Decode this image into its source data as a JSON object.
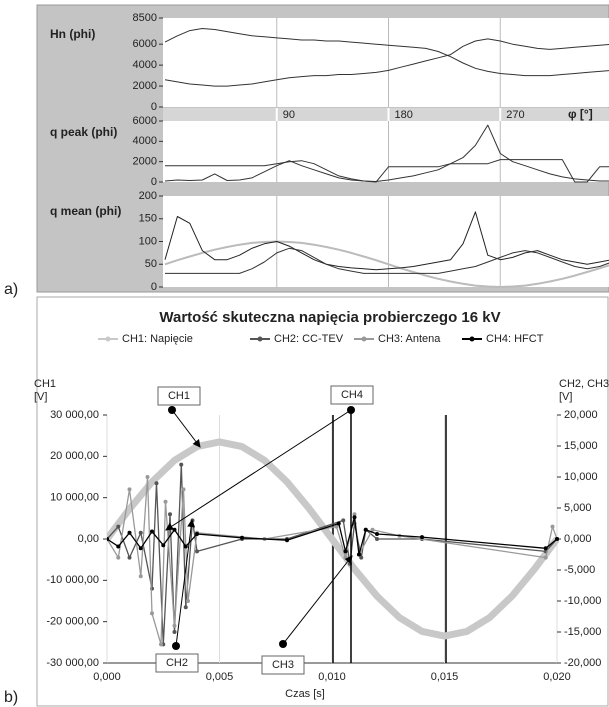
{
  "chart_data": [
    {
      "type": "line",
      "panel": "a)",
      "xlim": [
        0,
        360
      ],
      "xticks": [
        90,
        180,
        270
      ],
      "xlabel": "φ [°]",
      "x": [
        0,
        10,
        20,
        30,
        40,
        50,
        60,
        70,
        80,
        90,
        100,
        110,
        120,
        130,
        140,
        150,
        160,
        170,
        180,
        190,
        200,
        210,
        220,
        230,
        240,
        250,
        260,
        270,
        280,
        290,
        300,
        310,
        320,
        330,
        340,
        350,
        360
      ],
      "subplots": [
        {
          "ylabel": "Hn (phi)",
          "ylim": [
            0,
            8500
          ],
          "yticks": [
            0,
            2000,
            4000,
            6000,
            8500
          ],
          "series": [
            {
              "color": "#333333",
              "values": [
                6200,
                6800,
                7300,
                7500,
                7400,
                7200,
                7000,
                6800,
                6700,
                6600,
                6500,
                6400,
                6400,
                6300,
                6300,
                6200,
                6100,
                6000,
                5900,
                5800,
                5700,
                5600,
                5300,
                4800,
                4200,
                3700,
                3400,
                3200,
                3100,
                3000,
                3000,
                3000,
                3100,
                3200,
                3300,
                3400,
                3500
              ]
            },
            {
              "color": "#333333",
              "values": [
                2600,
                2400,
                2200,
                2100,
                2000,
                2000,
                2100,
                2200,
                2400,
                2600,
                2800,
                2900,
                3000,
                3000,
                3100,
                3100,
                3200,
                3300,
                3500,
                3800,
                4100,
                4400,
                4700,
                5000,
                5800,
                6300,
                6500,
                6300,
                6000,
                5800,
                5600,
                5500,
                5600,
                5700,
                5800,
                5900,
                6000
              ]
            }
          ]
        },
        {
          "ylabel": "q peak (phi)",
          "ylim": [
            0,
            6000
          ],
          "yticks": [
            0,
            2000,
            4000,
            6000
          ],
          "series": [
            {
              "color": "#333333",
              "values": [
                1600,
                1600,
                1600,
                1600,
                1600,
                1600,
                1600,
                1600,
                1600,
                1800,
                2000,
                2100,
                1800,
                1200,
                600,
                300,
                100,
                0,
                1500,
                1500,
                1500,
                1500,
                1500,
                1800,
                1800,
                1800,
                1800,
                2200,
                2200,
                2200,
                2200,
                2200,
                2200,
                0,
                0,
                1500,
                1500
              ]
            },
            {
              "color": "#333333",
              "values": [
                100,
                200,
                150,
                200,
                800,
                150,
                200,
                400,
                1000,
                1600,
                2100,
                1600,
                1200,
                800,
                400,
                200,
                100,
                50,
                200,
                400,
                600,
                900,
                1200,
                1800,
                2400,
                3600,
                5600,
                2800,
                2000,
                1600,
                1200,
                800,
                500,
                300,
                200,
                100,
                100
              ]
            }
          ]
        },
        {
          "ylabel": "q mean (phi)",
          "ylim": [
            0,
            200
          ],
          "yticks": [
            0,
            50,
            100,
            150,
            200
          ],
          "series": [
            {
              "color": "#bbbbbb",
              "values": [
                50,
                59,
                67,
                75,
                82,
                88,
                93,
                97,
                99,
                100,
                99,
                97,
                93,
                88,
                82,
                75,
                67,
                59,
                50,
                41,
                33,
                25,
                18,
                12,
                7,
                3,
                1,
                0,
                1,
                3,
                7,
                12,
                18,
                25,
                33,
                41,
                50
              ]
            },
            {
              "color": "#222222",
              "values": [
                60,
                155,
                140,
                80,
                60,
                60,
                70,
                85,
                95,
                100,
                90,
                75,
                60,
                50,
                45,
                42,
                40,
                38,
                40,
                42,
                45,
                50,
                55,
                60,
                95,
                165,
                70,
                60,
                65,
                75,
                80,
                70,
                60,
                55,
                50,
                55,
                60
              ]
            },
            {
              "color": "#333333",
              "values": [
                30,
                30,
                30,
                30,
                30,
                30,
                30,
                40,
                55,
                75,
                85,
                80,
                65,
                50,
                40,
                35,
                30,
                30,
                30,
                30,
                30,
                30,
                30,
                35,
                40,
                45,
                55,
                65,
                75,
                80,
                75,
                65,
                55,
                45,
                40,
                45,
                55
              ]
            }
          ]
        }
      ]
    },
    {
      "type": "line",
      "panel": "b)",
      "title": "Wartość skuteczna napięcia probierczego 16 kV",
      "ylabel": [
        "CH1",
        "[V]"
      ],
      "y2label": [
        "CH2, CH3, CH4",
        "[V]"
      ],
      "xlabel": "Czas [s]",
      "xlim": [
        0,
        0.02
      ],
      "xticks": [
        {
          "value": 0,
          "label": "0,000"
        },
        {
          "value": 0.005,
          "label": "0,005"
        },
        {
          "value": 0.01,
          "label": "0,010"
        },
        {
          "value": 0.015,
          "label": "0,015"
        },
        {
          "value": 0.02,
          "label": "0,020"
        }
      ],
      "ylim": [
        -30000,
        30000
      ],
      "yticks": [
        {
          "value": -30000,
          "label": "-30 000,00"
        },
        {
          "value": -20000,
          "label": "-20 000,00"
        },
        {
          "value": -10000,
          "label": "-10 000,00"
        },
        {
          "value": 0,
          "label": "0,00"
        },
        {
          "value": 10000,
          "label": "10 000,00"
        },
        {
          "value": 20000,
          "label": "20 000,00"
        },
        {
          "value": 30000,
          "label": "30 000,00"
        }
      ],
      "y2lim": [
        -20000,
        20000
      ],
      "y2ticks": [
        {
          "value": -20000,
          "label": "-20,000"
        },
        {
          "value": -15000,
          "label": "-15,000"
        },
        {
          "value": -10000,
          "label": "-10,000"
        },
        {
          "value": -5000,
          "label": "-5,000"
        },
        {
          "value": 0,
          "label": "0,000"
        },
        {
          "value": 5000,
          "label": "5,000"
        },
        {
          "value": 10000,
          "label": "10,000"
        },
        {
          "value": 15000,
          "label": "15,000"
        },
        {
          "value": 20000,
          "label": "20,000"
        }
      ],
      "series": [
        {
          "name": "CH1: Napięcie",
          "color": "#c8c8c8",
          "x": [
            0,
            0.001,
            0.002,
            0.003,
            0.004,
            0.005,
            0.006,
            0.007,
            0.008,
            0.009,
            0.01,
            0.011,
            0.012,
            0.013,
            0.014,
            0.015,
            0.016,
            0.017,
            0.018,
            0.019,
            0.02
          ],
          "values": [
            0,
            7262,
            13813,
            19012,
            22350,
            23500,
            22350,
            19012,
            13813,
            7262,
            0,
            -7262,
            -13813,
            -19012,
            -22350,
            -23500,
            -22350,
            -19012,
            -13813,
            -7262,
            0
          ]
        },
        {
          "name": "CH2: CC-TEV",
          "color": "#555555",
          "axis": "y2",
          "x": [
            0,
            0.0005,
            0.001,
            0.0015,
            0.002,
            0.0022,
            0.0025,
            0.0028,
            0.003,
            0.0033,
            0.0035,
            0.0038,
            0.004,
            0.006,
            0.008,
            0.0105,
            0.0108,
            0.011,
            0.0113,
            0.0115,
            0.012,
            0.014,
            0.0195,
            0.02
          ],
          "values": [
            0,
            2000,
            -3000,
            1000,
            -8000,
            9000,
            -17000,
            4000,
            -15000,
            12000,
            -11000,
            3000,
            -2000,
            0,
            0,
            3000,
            -4000,
            2500,
            -3000,
            1500,
            0,
            0,
            -2000,
            0
          ]
        },
        {
          "name": "CH3: Antena",
          "color": "#999999",
          "axis": "y2",
          "x": [
            0,
            0.0005,
            0.001,
            0.0015,
            0.0018,
            0.002,
            0.0024,
            0.0026,
            0.003,
            0.0034,
            0.0036,
            0.004,
            0.007,
            0.0102,
            0.0106,
            0.011,
            0.0112,
            0.0118,
            0.013,
            0.0195,
            0.0198,
            0.02
          ],
          "values": [
            0,
            -3000,
            8000,
            -6000,
            10000,
            -12000,
            -17000,
            6000,
            -14000,
            8000,
            -10000,
            1000,
            0,
            2000,
            -3000,
            4000,
            -2500,
            1500,
            500,
            -3000,
            2000,
            0
          ]
        },
        {
          "name": "CH4: HFCT",
          "color": "#000000",
          "axis": "y2",
          "x": [
            0,
            0.0005,
            0.001,
            0.0015,
            0.002,
            0.0025,
            0.003,
            0.0035,
            0.004,
            0.006,
            0.008,
            0.0103,
            0.0106,
            0.011,
            0.0112,
            0.0115,
            0.012,
            0.014,
            0.0195,
            0.02
          ],
          "values": [
            0,
            -1200,
            1000,
            -1500,
            1200,
            -1000,
            1500,
            -1200,
            800,
            200,
            -200,
            2500,
            -2000,
            3500,
            -2500,
            1500,
            800,
            300,
            -1500,
            0
          ]
        }
      ],
      "annotations": [
        "CH1",
        "CH4",
        "CH2",
        "CH3"
      ]
    }
  ]
}
